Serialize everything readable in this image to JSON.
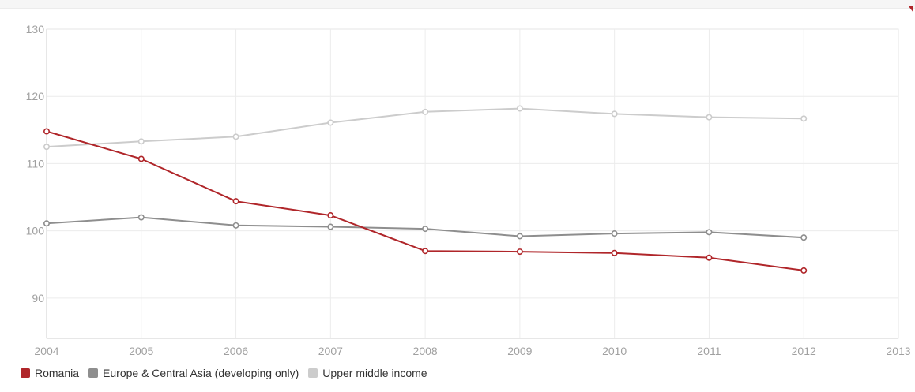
{
  "chart_data": {
    "type": "line",
    "title": "",
    "xlabel": "",
    "ylabel": "",
    "x": [
      2004,
      2005,
      2006,
      2007,
      2008,
      2009,
      2010,
      2011,
      2012
    ],
    "xlim": [
      2004,
      2013
    ],
    "ylim": [
      84,
      130
    ],
    "x_ticks": [
      "2004",
      "2005",
      "2006",
      "2007",
      "2008",
      "2009",
      "2010",
      "2011",
      "2012",
      "2013"
    ],
    "y_ticks": [
      "90",
      "100",
      "110",
      "120",
      "130"
    ],
    "grid": true,
    "legend_position": "bottom-left",
    "series": [
      {
        "name": "Romania",
        "color": "#b0262a",
        "values": [
          114.8,
          110.7,
          104.4,
          102.3,
          97.0,
          96.9,
          96.7,
          96.0,
          94.1
        ]
      },
      {
        "name": "Europe & Central Asia (developing only)",
        "color": "#8e8e8e",
        "values": [
          101.1,
          102.0,
          100.8,
          100.6,
          100.3,
          99.2,
          99.6,
          99.8,
          99.0
        ]
      },
      {
        "name": "Upper middle income",
        "color": "#cccccc",
        "values": [
          112.5,
          113.3,
          114.0,
          116.1,
          117.7,
          118.2,
          117.4,
          116.9,
          116.7
        ]
      }
    ]
  }
}
